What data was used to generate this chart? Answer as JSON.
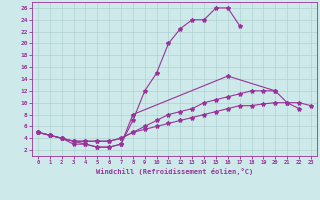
{
  "xlabel": "Windchill (Refroidissement éolien,°C)",
  "background_color": "#cde9e9",
  "line_color": "#993399",
  "grid_color": "#aacccc",
  "xlim": [
    -0.5,
    23.5
  ],
  "ylim": [
    1,
    27
  ],
  "xticks": [
    0,
    1,
    2,
    3,
    4,
    5,
    6,
    7,
    8,
    9,
    10,
    11,
    12,
    13,
    14,
    15,
    16,
    17,
    18,
    19,
    20,
    21,
    22,
    23
  ],
  "yticks": [
    2,
    4,
    6,
    8,
    10,
    12,
    14,
    16,
    18,
    20,
    22,
    24,
    26
  ],
  "series": [
    {
      "x": [
        0,
        1,
        2,
        3,
        4,
        5,
        6,
        7,
        8,
        9,
        10,
        11,
        12,
        13,
        14,
        15,
        16,
        17
      ],
      "y": [
        5,
        4.5,
        4,
        3,
        3,
        2.5,
        2.5,
        3,
        7,
        12,
        15,
        20,
        22.5,
        24,
        24,
        26,
        26,
        23
      ]
    },
    {
      "x": [
        0,
        1,
        2,
        3,
        4,
        5,
        6,
        7,
        8,
        16,
        20,
        21,
        22
      ],
      "y": [
        5,
        4.5,
        4,
        3.5,
        3,
        2.5,
        2.5,
        3,
        8,
        14.5,
        12,
        10,
        9
      ]
    },
    {
      "x": [
        0,
        1,
        2,
        3,
        4,
        5,
        6,
        7,
        8,
        9,
        10,
        11,
        12,
        13,
        14,
        15,
        16,
        17,
        18,
        19,
        20
      ],
      "y": [
        5,
        4.5,
        4,
        3.5,
        3.5,
        3.5,
        3.5,
        4,
        5,
        6,
        7,
        8,
        8.5,
        9,
        10,
        10.5,
        11,
        11.5,
        12,
        12,
        12
      ]
    },
    {
      "x": [
        0,
        1,
        2,
        3,
        4,
        5,
        6,
        7,
        8,
        9,
        10,
        11,
        12,
        13,
        14,
        15,
        16,
        17,
        18,
        19,
        20,
        21,
        22,
        23
      ],
      "y": [
        5,
        4.5,
        4,
        3.5,
        3.5,
        3.5,
        3.5,
        4,
        5,
        5.5,
        6,
        6.5,
        7,
        7.5,
        8,
        8.5,
        9,
        9.5,
        9.5,
        9.8,
        10,
        10,
        10,
        9.5
      ]
    }
  ]
}
